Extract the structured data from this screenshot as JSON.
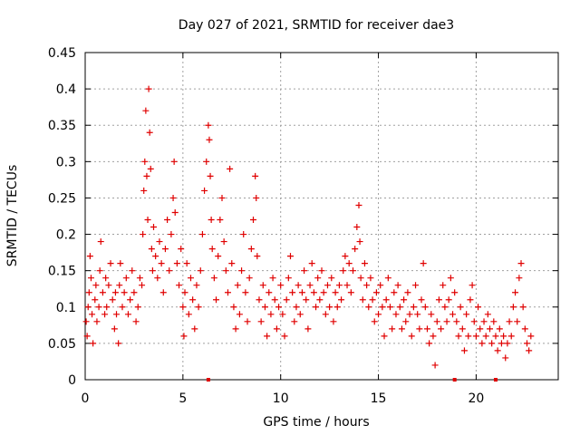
{
  "chart_data": {
    "type": "scatter",
    "title": "Day 027 of 2021, SRMTID for receiver dae3",
    "xlabel": "GPS time / hours",
    "ylabel": "SRMTID / TECUs",
    "xlim": [
      0,
      24.2
    ],
    "ylim": [
      0,
      0.45
    ],
    "x_ticks": [
      0,
      5,
      10,
      15,
      20
    ],
    "x_tick_labels": [
      "0",
      "5",
      "10",
      "15",
      "20"
    ],
    "y_ticks": [
      0,
      0.05,
      0.1,
      0.15,
      0.2,
      0.25,
      0.3,
      0.35,
      0.4,
      0.45
    ],
    "y_tick_labels": [
      "0",
      "0.05",
      "0.1",
      "0.15",
      "0.2",
      "0.25",
      "0.3",
      "0.35",
      "0.4",
      "0.45"
    ],
    "grid": true,
    "marker": "+",
    "color": "#e00000",
    "series": [
      {
        "name": "SRMTID",
        "points": [
          [
            0.05,
            0.08
          ],
          [
            0.1,
            0.06
          ],
          [
            0.15,
            0.1
          ],
          [
            0.2,
            0.12
          ],
          [
            0.25,
            0.17
          ],
          [
            0.3,
            0.14
          ],
          [
            0.35,
            0.09
          ],
          [
            0.4,
            0.05
          ],
          [
            0.5,
            0.11
          ],
          [
            0.55,
            0.13
          ],
          [
            0.6,
            0.08
          ],
          [
            0.7,
            0.1
          ],
          [
            0.75,
            0.15
          ],
          [
            0.8,
            0.19
          ],
          [
            0.9,
            0.12
          ],
          [
            1.0,
            0.09
          ],
          [
            1.05,
            0.14
          ],
          [
            1.1,
            0.1
          ],
          [
            1.2,
            0.13
          ],
          [
            1.3,
            0.16
          ],
          [
            1.4,
            0.11
          ],
          [
            1.5,
            0.07
          ],
          [
            1.55,
            0.12
          ],
          [
            1.6,
            0.09
          ],
          [
            1.7,
            0.05
          ],
          [
            1.75,
            0.13
          ],
          [
            1.8,
            0.16
          ],
          [
            1.9,
            0.1
          ],
          [
            2.0,
            0.12
          ],
          [
            2.1,
            0.14
          ],
          [
            2.2,
            0.09
          ],
          [
            2.3,
            0.11
          ],
          [
            2.4,
            0.15
          ],
          [
            2.5,
            0.12
          ],
          [
            2.6,
            0.08
          ],
          [
            2.7,
            0.1
          ],
          [
            2.8,
            0.14
          ],
          [
            2.9,
            0.13
          ],
          [
            2.95,
            0.2
          ],
          [
            3.0,
            0.26
          ],
          [
            3.05,
            0.3
          ],
          [
            3.1,
            0.37
          ],
          [
            3.15,
            0.28
          ],
          [
            3.2,
            0.22
          ],
          [
            3.25,
            0.4
          ],
          [
            3.3,
            0.34
          ],
          [
            3.35,
            0.29
          ],
          [
            3.4,
            0.18
          ],
          [
            3.45,
            0.15
          ],
          [
            3.5,
            0.21
          ],
          [
            3.6,
            0.17
          ],
          [
            3.7,
            0.14
          ],
          [
            3.8,
            0.19
          ],
          [
            3.9,
            0.16
          ],
          [
            4.0,
            0.12
          ],
          [
            4.1,
            0.18
          ],
          [
            4.2,
            0.22
          ],
          [
            4.3,
            0.15
          ],
          [
            4.4,
            0.2
          ],
          [
            4.5,
            0.25
          ],
          [
            4.55,
            0.3
          ],
          [
            4.6,
            0.23
          ],
          [
            4.7,
            0.16
          ],
          [
            4.8,
            0.13
          ],
          [
            4.9,
            0.18
          ],
          [
            5.0,
            0.1
          ],
          [
            5.05,
            0.06
          ],
          [
            5.1,
            0.12
          ],
          [
            5.2,
            0.16
          ],
          [
            5.3,
            0.09
          ],
          [
            5.4,
            0.14
          ],
          [
            5.5,
            0.11
          ],
          [
            5.6,
            0.07
          ],
          [
            5.7,
            0.13
          ],
          [
            5.8,
            0.1
          ],
          [
            5.9,
            0.15
          ],
          [
            6.0,
            0.2
          ],
          [
            6.1,
            0.26
          ],
          [
            6.2,
            0.3
          ],
          [
            6.3,
            0.35
          ],
          [
            6.35,
            0.33
          ],
          [
            6.4,
            0.28
          ],
          [
            6.45,
            0.22
          ],
          [
            6.5,
            0.18
          ],
          [
            6.6,
            0.14
          ],
          [
            6.7,
            0.11
          ],
          [
            6.8,
            0.17
          ],
          [
            6.9,
            0.22
          ],
          [
            7.0,
            0.25
          ],
          [
            7.1,
            0.19
          ],
          [
            7.2,
            0.15
          ],
          [
            7.3,
            0.12
          ],
          [
            7.4,
            0.29
          ],
          [
            7.5,
            0.16
          ],
          [
            7.6,
            0.1
          ],
          [
            7.7,
            0.07
          ],
          [
            7.8,
            0.13
          ],
          [
            7.9,
            0.09
          ],
          [
            8.0,
            0.15
          ],
          [
            8.1,
            0.2
          ],
          [
            8.2,
            0.12
          ],
          [
            8.3,
            0.08
          ],
          [
            8.4,
            0.14
          ],
          [
            8.5,
            0.18
          ],
          [
            8.6,
            0.22
          ],
          [
            8.7,
            0.28
          ],
          [
            8.75,
            0.25
          ],
          [
            8.8,
            0.17
          ],
          [
            8.9,
            0.11
          ],
          [
            9.0,
            0.08
          ],
          [
            9.1,
            0.13
          ],
          [
            9.2,
            0.1
          ],
          [
            9.3,
            0.06
          ],
          [
            9.4,
            0.12
          ],
          [
            9.5,
            0.09
          ],
          [
            9.6,
            0.14
          ],
          [
            9.7,
            0.11
          ],
          [
            9.8,
            0.07
          ],
          [
            9.9,
            0.1
          ],
          [
            10.0,
            0.13
          ],
          [
            10.1,
            0.09
          ],
          [
            10.2,
            0.06
          ],
          [
            10.3,
            0.11
          ],
          [
            10.4,
            0.14
          ],
          [
            10.5,
            0.17
          ],
          [
            10.6,
            0.12
          ],
          [
            10.7,
            0.08
          ],
          [
            10.8,
            0.1
          ],
          [
            10.9,
            0.13
          ],
          [
            11.0,
            0.09
          ],
          [
            11.1,
            0.12
          ],
          [
            11.2,
            0.15
          ],
          [
            11.3,
            0.11
          ],
          [
            11.4,
            0.07
          ],
          [
            11.5,
            0.13
          ],
          [
            11.6,
            0.16
          ],
          [
            11.7,
            0.12
          ],
          [
            11.8,
            0.1
          ],
          [
            11.9,
            0.14
          ],
          [
            12.0,
            0.11
          ],
          [
            12.1,
            0.15
          ],
          [
            12.2,
            0.12
          ],
          [
            12.3,
            0.09
          ],
          [
            12.4,
            0.13
          ],
          [
            12.5,
            0.1
          ],
          [
            12.6,
            0.14
          ],
          [
            12.7,
            0.08
          ],
          [
            12.8,
            0.12
          ],
          [
            12.9,
            0.1
          ],
          [
            13.0,
            0.13
          ],
          [
            13.1,
            0.11
          ],
          [
            13.2,
            0.15
          ],
          [
            13.3,
            0.17
          ],
          [
            13.4,
            0.13
          ],
          [
            13.5,
            0.16
          ],
          [
            13.6,
            0.12
          ],
          [
            13.7,
            0.15
          ],
          [
            13.8,
            0.18
          ],
          [
            13.9,
            0.21
          ],
          [
            14.0,
            0.24
          ],
          [
            14.05,
            0.19
          ],
          [
            14.1,
            0.14
          ],
          [
            14.2,
            0.11
          ],
          [
            14.3,
            0.16
          ],
          [
            14.4,
            0.13
          ],
          [
            14.5,
            0.1
          ],
          [
            14.6,
            0.14
          ],
          [
            14.7,
            0.11
          ],
          [
            14.8,
            0.08
          ],
          [
            14.9,
            0.12
          ],
          [
            15.0,
            0.09
          ],
          [
            15.1,
            0.13
          ],
          [
            15.2,
            0.1
          ],
          [
            15.3,
            0.06
          ],
          [
            15.4,
            0.11
          ],
          [
            15.5,
            0.14
          ],
          [
            15.6,
            0.1
          ],
          [
            15.7,
            0.07
          ],
          [
            15.8,
            0.12
          ],
          [
            15.9,
            0.09
          ],
          [
            16.0,
            0.13
          ],
          [
            16.1,
            0.1
          ],
          [
            16.2,
            0.07
          ],
          [
            16.3,
            0.11
          ],
          [
            16.4,
            0.08
          ],
          [
            16.5,
            0.12
          ],
          [
            16.6,
            0.09
          ],
          [
            16.7,
            0.06
          ],
          [
            16.8,
            0.1
          ],
          [
            16.9,
            0.13
          ],
          [
            17.0,
            0.09
          ],
          [
            17.1,
            0.07
          ],
          [
            17.2,
            0.11
          ],
          [
            17.3,
            0.16
          ],
          [
            17.4,
            0.1
          ],
          [
            17.5,
            0.07
          ],
          [
            17.6,
            0.05
          ],
          [
            17.7,
            0.09
          ],
          [
            17.8,
            0.06
          ],
          [
            17.9,
            0.02
          ],
          [
            18.0,
            0.08
          ],
          [
            18.1,
            0.11
          ],
          [
            18.2,
            0.07
          ],
          [
            18.3,
            0.13
          ],
          [
            18.4,
            0.1
          ],
          [
            18.5,
            0.08
          ],
          [
            18.6,
            0.11
          ],
          [
            18.7,
            0.14
          ],
          [
            18.8,
            0.09
          ],
          [
            18.9,
            0.12
          ],
          [
            19.0,
            0.08
          ],
          [
            19.1,
            0.06
          ],
          [
            19.2,
            0.1
          ],
          [
            19.3,
            0.07
          ],
          [
            19.4,
            0.04
          ],
          [
            19.5,
            0.09
          ],
          [
            19.6,
            0.06
          ],
          [
            19.7,
            0.11
          ],
          [
            19.8,
            0.13
          ],
          [
            19.9,
            0.08
          ],
          [
            20.0,
            0.06
          ],
          [
            20.1,
            0.1
          ],
          [
            20.2,
            0.07
          ],
          [
            20.3,
            0.05
          ],
          [
            20.4,
            0.08
          ],
          [
            20.5,
            0.06
          ],
          [
            20.6,
            0.09
          ],
          [
            20.7,
            0.07
          ],
          [
            20.8,
            0.05
          ],
          [
            20.9,
            0.08
          ],
          [
            21.0,
            0.06
          ],
          [
            21.1,
            0.04
          ],
          [
            21.2,
            0.07
          ],
          [
            21.3,
            0.05
          ],
          [
            21.4,
            0.06
          ],
          [
            21.5,
            0.03
          ],
          [
            21.6,
            0.05
          ],
          [
            21.7,
            0.08
          ],
          [
            21.8,
            0.06
          ],
          [
            21.9,
            0.1
          ],
          [
            22.0,
            0.12
          ],
          [
            22.1,
            0.08
          ],
          [
            22.2,
            0.14
          ],
          [
            22.3,
            0.16
          ],
          [
            22.4,
            0.1
          ],
          [
            22.5,
            0.07
          ],
          [
            22.6,
            0.05
          ],
          [
            22.7,
            0.04
          ],
          [
            22.8,
            0.06
          ]
        ]
      }
    ],
    "zero_markers_x": [
      6.3,
      18.9,
      21.0
    ]
  }
}
